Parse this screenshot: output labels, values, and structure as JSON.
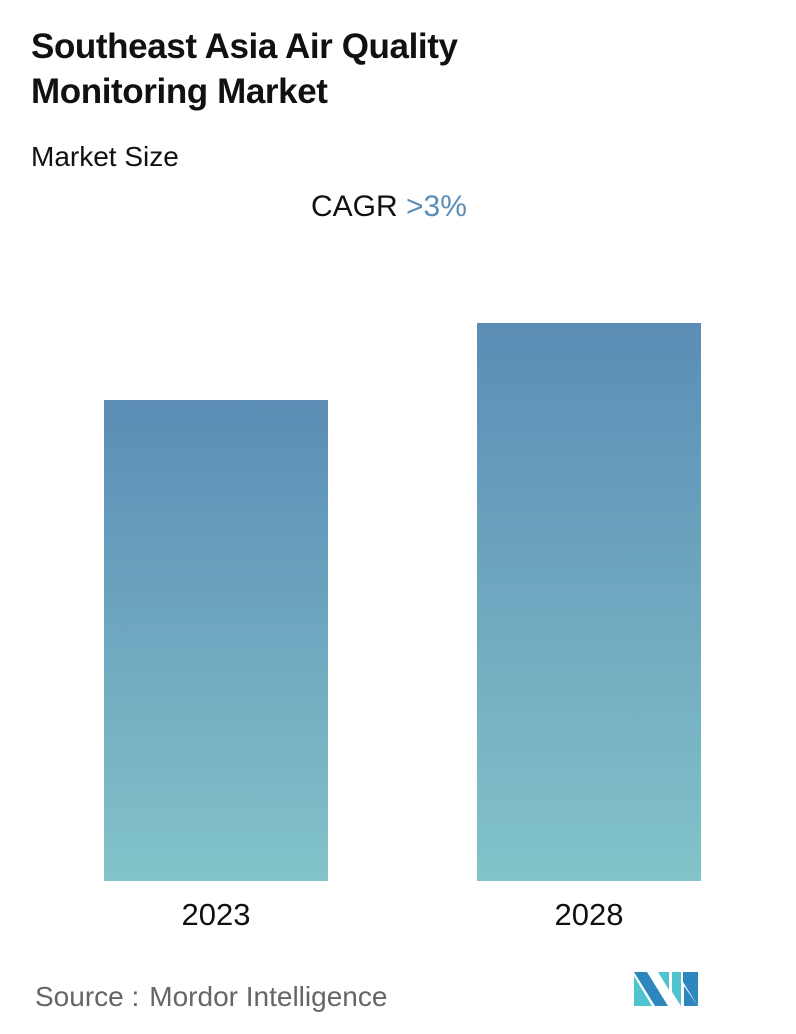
{
  "header": {
    "title": "Southeast Asia Air Quality Monitoring Market",
    "subtitle": "Market Size",
    "cagr_label": "CAGR",
    "cagr_value": ">3%"
  },
  "colors": {
    "cagr_accent": "#5b8db8",
    "bar_gradient_top": "#5b8db6",
    "bar_gradient_bottom": "#82c3c9",
    "logo_dark": "#2e86bf",
    "logo_light": "#4fc3cf"
  },
  "chart_data": {
    "type": "bar",
    "title": "Southeast Asia Air Quality Monitoring Market",
    "subtitle": "Market Size",
    "categories": [
      "2023",
      "2028"
    ],
    "values": [
      100,
      116
    ],
    "value_note": "Relative bar heights (no numeric axis shown); 2023 bar indexed to 100",
    "annotations": [
      "CAGR >3%"
    ],
    "xlabel": "",
    "ylabel": "",
    "grid": false,
    "legend": null
  },
  "footer": {
    "source_label": "Source :",
    "source_name": "Mordor Intelligence",
    "logo_icon": "mordor-intelligence-logo"
  }
}
